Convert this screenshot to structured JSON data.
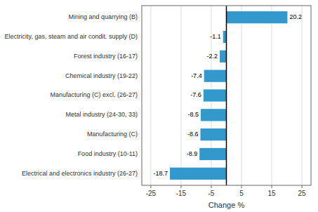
{
  "chart_data": {
    "type": "bar",
    "orientation": "horizontal",
    "categories": [
      "Electrical and electronics industry (26-27)",
      "Food industry (10-11)",
      "Manufacturing (C)",
      "Metal industry (24-30, 33)",
      "Manufacturing (C) excl. (26-27)",
      "Chemical industry (19-22)",
      "Forest industry (16-17)",
      "Electricity, gas, steam and air condit. supply (D)",
      "Mining and quarrying (B)"
    ],
    "values": [
      -18.7,
      -8.9,
      -8.6,
      -8.5,
      -7.6,
      -7.4,
      -2.2,
      -1.1,
      20.2
    ],
    "color": "#3399CC",
    "xlabel": "Change %",
    "xlim": [
      -28,
      28
    ],
    "xticks": [
      -25,
      -15,
      -5,
      5,
      15,
      25
    ],
    "grid": true,
    "data_labels": true
  }
}
